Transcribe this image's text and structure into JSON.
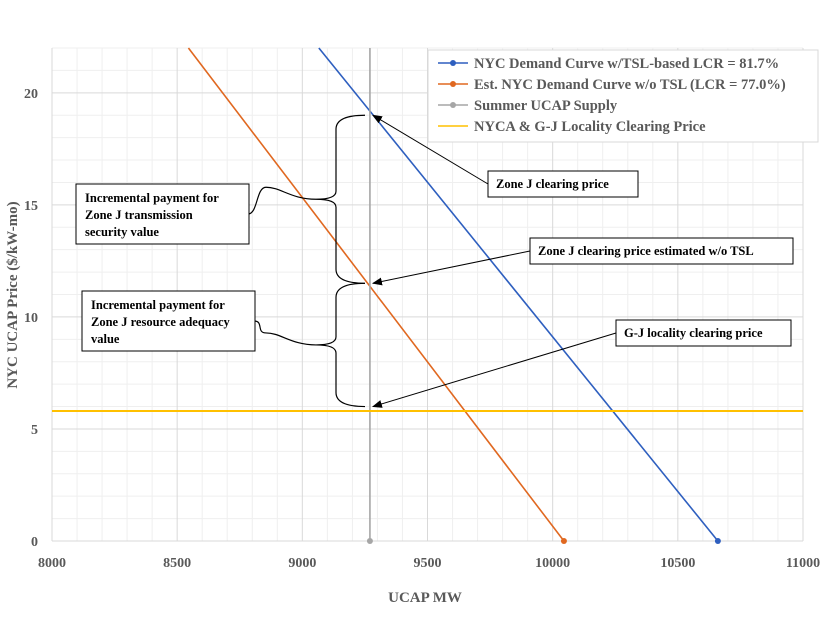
{
  "chart_data": {
    "type": "line",
    "xlabel": "UCAP MW",
    "ylabel": "NYC UCAP Price ($/kW-mo)",
    "xlim": [
      8000,
      11000
    ],
    "ylim": [
      0,
      22
    ],
    "xticks": [
      8000,
      8500,
      9000,
      9500,
      10000,
      10500,
      11000
    ],
    "yticks": [
      0,
      5,
      10,
      15,
      20
    ],
    "x_minor_grid_step": 100,
    "y_minor_grid_step": 1,
    "legend_position": "top-right",
    "series": [
      {
        "name": "NYC Demand Curve w/TSL-based LCR = 81.7%",
        "color": "#2E5FBF",
        "kind": "line",
        "points": [
          [
            9066,
            22
          ],
          [
            10660,
            0
          ]
        ],
        "end_marker": true
      },
      {
        "name": "Est. NYC Demand Curve w/o TSL (LCR = 77.0%)",
        "color": "#E06820",
        "kind": "line",
        "points": [
          [
            8545,
            22
          ],
          [
            10045,
            0
          ]
        ],
        "end_marker": true
      },
      {
        "name": "Summer UCAP Supply",
        "color": "#A6A6A6",
        "kind": "vline",
        "x": 9270,
        "end_marker": true
      },
      {
        "name": "NYCA & G-J Locality Clearing Price",
        "color": "#FFC000",
        "kind": "hline",
        "y": 5.8
      }
    ],
    "annotations": [
      {
        "id": "zone-j-clearing",
        "lines": [
          "Zone J clearing price"
        ],
        "point": [
          9270,
          19.0
        ]
      },
      {
        "id": "zone-j-no-tsl",
        "lines": [
          "Zone J clearing price estimated w/o TSL"
        ],
        "point": [
          9270,
          11.5
        ]
      },
      {
        "id": "gj-locality",
        "lines": [
          "G-J locality clearing price"
        ],
        "point": [
          9270,
          6.0
        ]
      }
    ],
    "brackets": [
      {
        "id": "tsv",
        "y_top": 19.0,
        "y_bottom": 11.5,
        "lines": [
          "Incremental payment for",
          "Zone J transmission",
          "security value"
        ]
      },
      {
        "id": "rav",
        "y_top": 11.5,
        "y_bottom": 6.0,
        "lines": [
          "Incremental payment for",
          "Zone J resource adequacy",
          "value"
        ]
      }
    ]
  }
}
